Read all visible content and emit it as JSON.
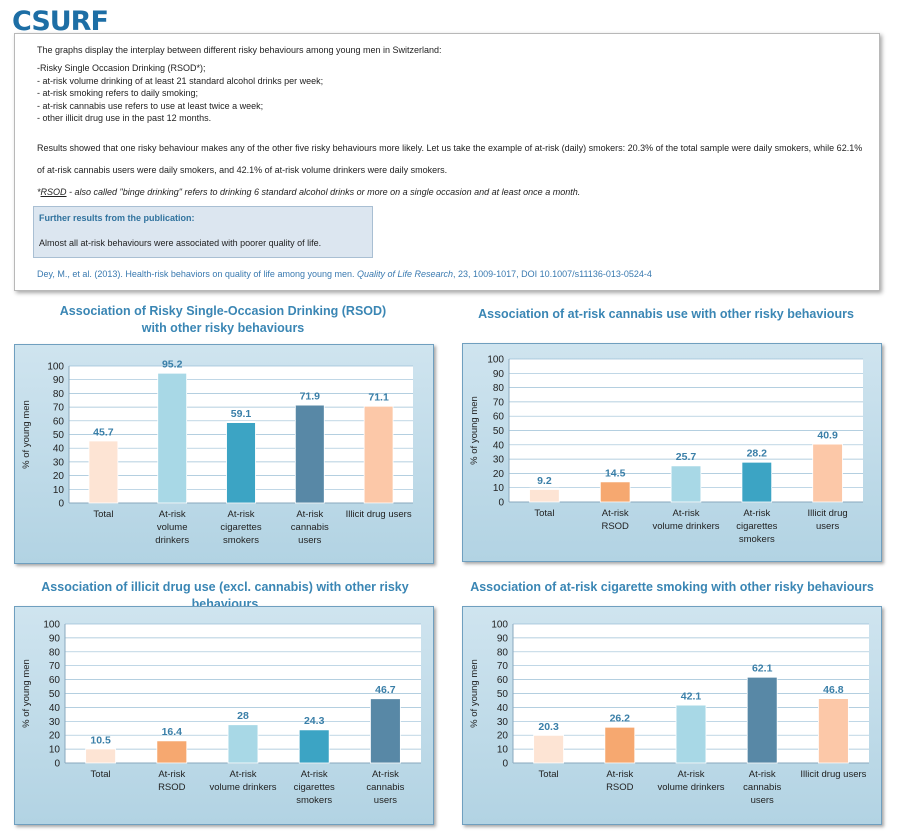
{
  "header": {
    "logo_text": "CSURF"
  },
  "info": {
    "intro": "The  graphs display the interplay between different risky behaviours among young men in Switzerland:",
    "bullets": [
      "-Risky Single Occasion Drinking (RSOD*);",
      "- at-risk volume drinking of at least 21 standard alcohol drinks per week;",
      "- at-risk smoking refers to daily smoking;",
      "- at-risk cannabis use refers to use at least twice a week;",
      "- other illicit drug use in the past 12 months."
    ],
    "results": "Results showed that one risky behaviour makes any of the other five risky behaviours more likely.  Let us take the example of at-risk (daily) smokers: 20.3% of the total sample were daily smokers, while 62.1% of at-risk cannabis users were daily smokers, and 42.1% of at-risk volume drinkers were daily smokers.",
    "note_prefix": "*",
    "note_term": "RSOD",
    "note_text": "  - also called \"binge drinking\" refers to drinking 6 standard alcohol drinks or more on a single occasion and at least once a month.",
    "further_heading": "Further results from the publication:",
    "further_text": "Almost all at-risk behaviours were associated with poorer quality of life.",
    "citation_authors": "Dey, M., et al. (2013). Health-risk behaviors on quality of life among young men. ",
    "citation_journal": "Quality of Life Research",
    "citation_rest": ", 23, 1009-1017,  DOI 10.1007/s11136-013-0524-4"
  },
  "chart_data": [
    {
      "type": "bar",
      "title": "Association of Risky Single-Occasion Drinking (RSOD) with other risky behaviours",
      "title_lines": [
        "Association of Risky Single-Occasion Drinking (RSOD)",
        "with other risky behaviours"
      ],
      "categories": [
        "Total",
        "At-risk volume drinkers",
        "At-risk cigarettes smokers",
        "At-risk cannabis users",
        "Illicit drug users"
      ],
      "category_lines": [
        [
          "Total"
        ],
        [
          "At-risk",
          "volume",
          "drinkers"
        ],
        [
          "At-risk",
          "cigarettes",
          "smokers"
        ],
        [
          "At-risk",
          "cannabis",
          "users"
        ],
        [
          "Illicit drug users"
        ]
      ],
      "values": [
        45.7,
        95.2,
        59.1,
        71.9,
        71.1
      ],
      "labels": [
        "45.7",
        "95.2",
        "59.1",
        "71.9",
        "71.1"
      ],
      "colors": [
        "#fde4d4",
        "#a8d8e6",
        "#3ca4c4",
        "#5888a6",
        "#fcc8a8"
      ],
      "ylabel": "% of young men",
      "ylim": [
        0,
        100
      ],
      "yticks": [
        "0",
        "10",
        "20",
        "30",
        "40",
        "50",
        "60",
        "70",
        "80",
        "90",
        "100"
      ],
      "grid": true
    },
    {
      "type": "bar",
      "title": "Association of at-risk cannabis use with other risky behaviours",
      "title_lines": [
        "Association of at-risk cannabis use with other risky behaviours"
      ],
      "categories": [
        "Total",
        "At-risk RSOD",
        "At-risk volume drinkers",
        "At-risk cigarettes smokers",
        "Illicit drug users"
      ],
      "category_lines": [
        [
          "Total"
        ],
        [
          "At-risk",
          "RSOD"
        ],
        [
          "At-risk",
          "volume drinkers"
        ],
        [
          "At-risk",
          "cigarettes",
          "smokers"
        ],
        [
          "Illicit drug",
          "users"
        ]
      ],
      "values": [
        9.2,
        14.5,
        25.7,
        28.2,
        40.9
      ],
      "labels": [
        "9.2",
        "14.5",
        "25.7",
        "28.2",
        "40.9"
      ],
      "colors": [
        "#fde4d4",
        "#f6a870",
        "#a8d8e6",
        "#3ca4c4",
        "#fcc8a8"
      ],
      "ylabel": "% of young men",
      "ylim": [
        0,
        100
      ],
      "yticks": [
        "0",
        "10",
        "20",
        "30",
        "40",
        "50",
        "60",
        "70",
        "80",
        "90",
        "100"
      ],
      "grid": true
    },
    {
      "type": "bar",
      "title": "Association of illicit drug use (excl. cannabis) with other risky behaviours",
      "title_lines": [
        "Association of illicit drug use (excl. cannabis) with other risky behaviours"
      ],
      "categories": [
        "Total",
        "At-risk RSOD",
        "At-risk volume drinkers",
        "At-risk cigarettes smokers",
        "At-risk cannabis users"
      ],
      "category_lines": [
        [
          "Total"
        ],
        [
          "At-risk",
          "RSOD"
        ],
        [
          "At-risk",
          "volume drinkers"
        ],
        [
          "At-risk",
          "cigarettes",
          "smokers"
        ],
        [
          "At-risk",
          "cannabis",
          "users"
        ]
      ],
      "values": [
        10.5,
        16.4,
        28,
        24.3,
        46.7
      ],
      "labels": [
        "10.5",
        "16.4",
        "28",
        "24.3",
        "46.7"
      ],
      "colors": [
        "#fde4d4",
        "#f6a870",
        "#a8d8e6",
        "#3ca4c4",
        "#5888a6"
      ],
      "ylabel": "% of young men",
      "ylim": [
        0,
        100
      ],
      "yticks": [
        "0",
        "10",
        "20",
        "30",
        "40",
        "50",
        "60",
        "70",
        "80",
        "90",
        "100"
      ],
      "grid": true
    },
    {
      "type": "bar",
      "title": "Association of at-risk cigarette smoking with other risky behaviours",
      "title_lines": [
        "Association of at-risk cigarette smoking with other risky behaviours"
      ],
      "categories": [
        "Total",
        "At-risk RSOD",
        "At-risk volume drinkers",
        "At-risk cannabis users",
        "Illicit drug  users"
      ],
      "category_lines": [
        [
          "Total"
        ],
        [
          "At-risk",
          "RSOD"
        ],
        [
          "At-risk",
          "volume drinkers"
        ],
        [
          "At-risk",
          "cannabis",
          "users"
        ],
        [
          "Illicit drug  users"
        ]
      ],
      "values": [
        20.3,
        26.2,
        42.1,
        62.1,
        46.8
      ],
      "labels": [
        "20.3",
        "26.2",
        "42.1",
        "62.1",
        "46.8"
      ],
      "colors": [
        "#fde4d4",
        "#f6a870",
        "#a8d8e6",
        "#5888a6",
        "#fcc8a8"
      ],
      "ylabel": "% of young men",
      "ylim": [
        0,
        100
      ],
      "yticks": [
        "0",
        "10",
        "20",
        "30",
        "40",
        "50",
        "60",
        "70",
        "80",
        "90",
        "100"
      ],
      "grid": true
    }
  ]
}
